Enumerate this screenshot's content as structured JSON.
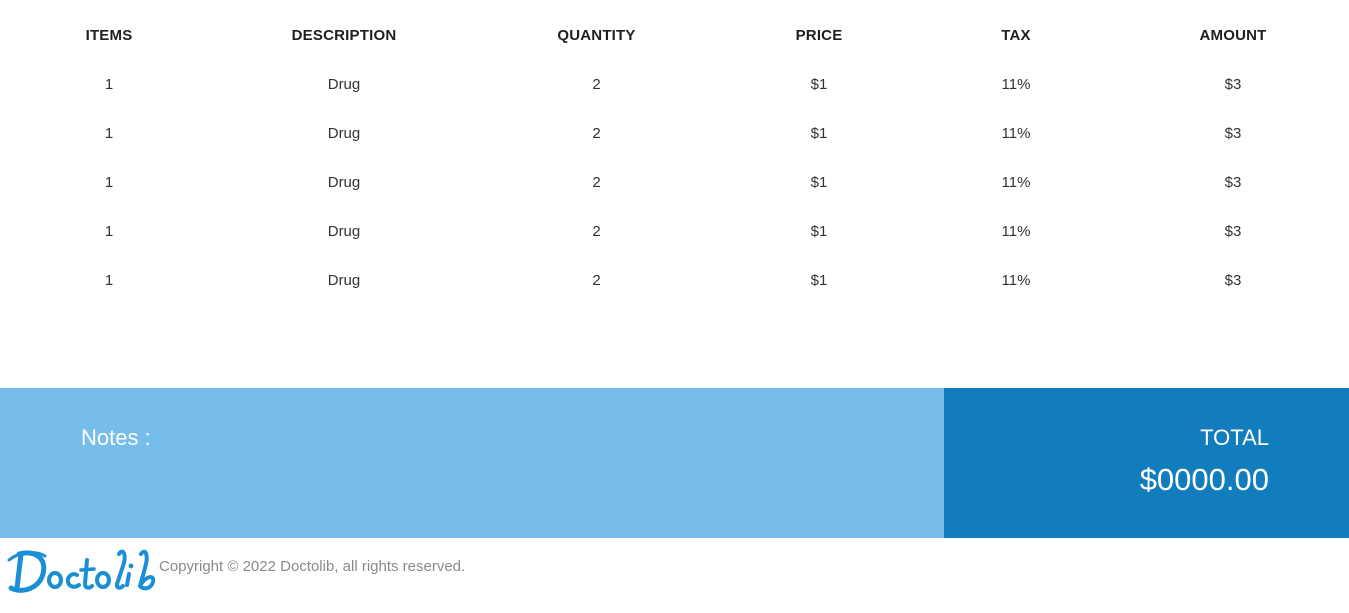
{
  "table": {
    "headers": [
      "ITEMS",
      "DESCRIPTION",
      "QUANTITY",
      "PRICE",
      "TAX",
      "AMOUNT"
    ],
    "rows": [
      [
        "1",
        "Drug",
        "2",
        "$1",
        "11%",
        "$3"
      ],
      [
        "1",
        "Drug",
        "2",
        "$1",
        "11%",
        "$3"
      ],
      [
        "1",
        "Drug",
        "2",
        "$1",
        "11%",
        "$3"
      ],
      [
        "1",
        "Drug",
        "2",
        "$1",
        "11%",
        "$3"
      ],
      [
        "1",
        "Drug",
        "2",
        "$1",
        "11%",
        "$3"
      ]
    ]
  },
  "summary": {
    "notes_label": "Notes :",
    "total_label": "TOTAL",
    "total_value": "$0000.00"
  },
  "footer": {
    "logo_text": "Doctolib",
    "copyright": "Copyright © 2022 Doctolib, all rights reserved."
  },
  "colors": {
    "notes_bg": "#76bee9",
    "total_bg": "#127dbd",
    "logo_blue": "#1a8fd6"
  },
  "icons": {
    "logo": "doctolib-logo"
  }
}
